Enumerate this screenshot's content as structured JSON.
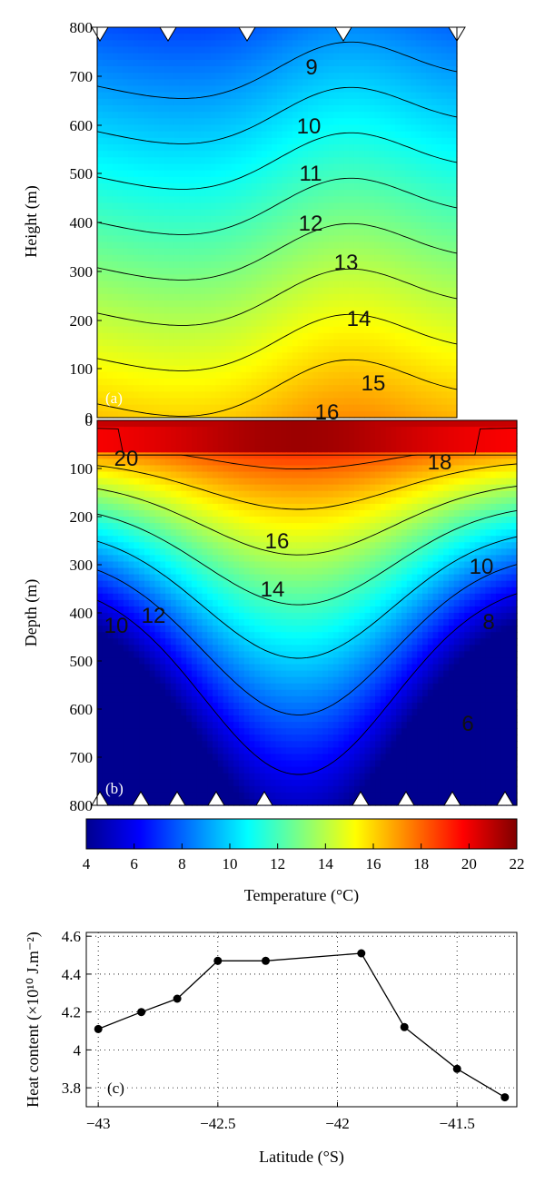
{
  "colors": {
    "colormap": [
      "#00008f",
      "#0000ff",
      "#0080ff",
      "#00ffff",
      "#80ff80",
      "#ffff00",
      "#ff8000",
      "#ff0000",
      "#800000"
    ],
    "contour": "#000000"
  },
  "chart_data": [
    {
      "panel": "(a)",
      "type": "heatmap",
      "ylabel": "Height (m)",
      "ylim": [
        0,
        800
      ],
      "yticks": [
        "0",
        "100",
        "200",
        "300",
        "400",
        "500",
        "600",
        "700",
        "800"
      ],
      "contour_labels": [
        "9",
        "10",
        "11",
        "12",
        "13",
        "14",
        "15",
        "16"
      ],
      "contour_levels": [
        9,
        10,
        11,
        12,
        13,
        14,
        15,
        16
      ],
      "station_markers": "top",
      "grid": false
    },
    {
      "panel": "(b)",
      "type": "heatmap",
      "ylabel": "Depth (m)",
      "ylim": [
        800,
        0
      ],
      "yticks": [
        "0",
        "100",
        "200",
        "300",
        "400",
        "500",
        "600",
        "700",
        "800"
      ],
      "contour_labels": [
        "20",
        "18",
        "16",
        "14",
        "12",
        "10",
        "10",
        "8",
        "6"
      ],
      "contour_levels": [
        6,
        8,
        10,
        12,
        14,
        16,
        18,
        20
      ],
      "station_markers": "bottom",
      "grid": false
    },
    {
      "type": "colorbar",
      "label": "Temperature (°C)",
      "range": [
        4,
        22
      ],
      "ticks": [
        "4",
        "6",
        "8",
        "10",
        "12",
        "14",
        "16",
        "18",
        "20",
        "22"
      ]
    },
    {
      "panel": "(c)",
      "type": "line",
      "xlabel": "Latitude (°S)",
      "ylabel": "Heat content (×10¹⁰ J.m⁻²)",
      "xlim": [
        -43.05,
        -41.25
      ],
      "ylim": [
        3.7,
        4.62
      ],
      "xticks": [
        "−43",
        "−42.5",
        "−42",
        "−41.5"
      ],
      "yticks": [
        "3.8",
        "4",
        "4.2",
        "4.4",
        "4.6"
      ],
      "grid": "dotted",
      "series": [
        {
          "x": [
            -43.0,
            -42.82,
            -42.67,
            -42.5,
            -42.3,
            -41.9,
            -41.72,
            -41.5,
            -41.3
          ],
          "values": [
            4.11,
            4.2,
            4.27,
            4.47,
            4.47,
            4.51,
            4.12,
            3.9,
            3.75
          ]
        }
      ]
    }
  ]
}
